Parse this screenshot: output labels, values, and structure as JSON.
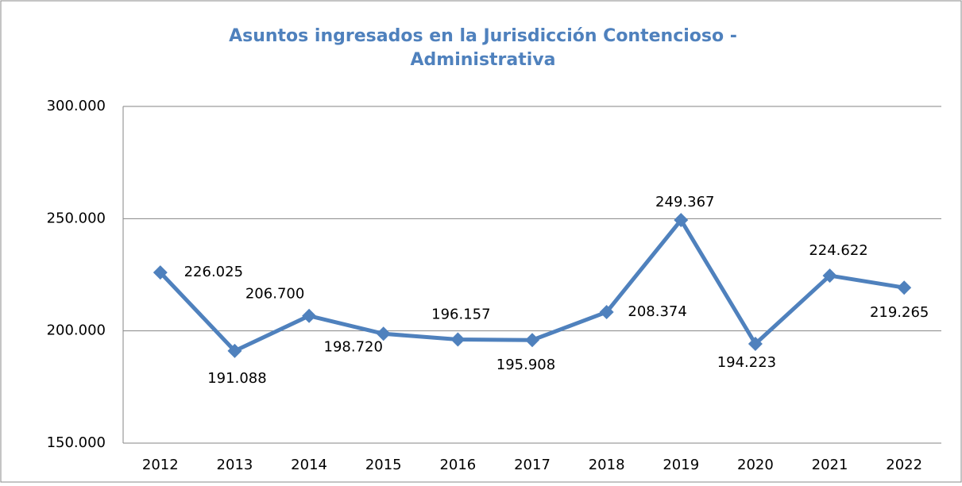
{
  "chart_data": {
    "type": "line",
    "title": [
      "Asuntos ingresados en la Jurisdicción  Contencioso -",
      "Administrativa"
    ],
    "categories": [
      "2012",
      "2013",
      "2014",
      "2015",
      "2016",
      "2017",
      "2018",
      "2019",
      "2020",
      "2021",
      "2022"
    ],
    "series": [
      {
        "name": "Asuntos ingresados",
        "color": "#4f81bd",
        "values": [
          226025,
          191088,
          206700,
          198720,
          196157,
          195908,
          208374,
          249367,
          194223,
          224622,
          219265
        ],
        "value_labels": [
          "226.025",
          "191.088",
          "206.700",
          "198.720",
          "196.157",
          "195.908",
          "208.374",
          "249.367",
          "194.223",
          "224.622",
          "219.265"
        ]
      }
    ],
    "ylim": [
      150000,
      300000
    ],
    "yticks": [
      {
        "value": 150000,
        "label": "150.000"
      },
      {
        "value": 200000,
        "label": "200.000"
      },
      {
        "value": 250000,
        "label": "250.000"
      },
      {
        "value": 300000,
        "label": "300.000"
      }
    ],
    "grid": true,
    "legend": false
  }
}
